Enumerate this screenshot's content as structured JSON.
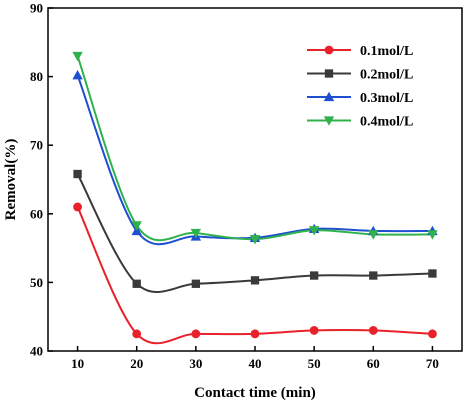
{
  "chart_data": {
    "type": "line",
    "title": "",
    "xlabel": "Contact time (min)",
    "ylabel": "Removal(%)",
    "xlim": [
      5,
      75
    ],
    "ylim": [
      40,
      90
    ],
    "xticks": [
      10,
      20,
      30,
      40,
      50,
      60,
      70
    ],
    "yticks": [
      40,
      50,
      60,
      70,
      80,
      90
    ],
    "grid": false,
    "legend_position": "top-right",
    "x": [
      10,
      20,
      30,
      40,
      50,
      60,
      70
    ],
    "series": [
      {
        "name": "0.1mol/L",
        "color": "#e8212a",
        "marker": "circle",
        "values": [
          61.0,
          42.5,
          42.5,
          42.5,
          43.0,
          43.0,
          42.5
        ]
      },
      {
        "name": "0.2mol/L",
        "color": "#3a3a3a",
        "marker": "square",
        "values": [
          65.8,
          49.8,
          49.8,
          50.3,
          51.0,
          51.0,
          51.3
        ]
      },
      {
        "name": "0.3mol/L",
        "color": "#1f4fd1",
        "marker": "triangle-up",
        "values": [
          80.2,
          57.5,
          56.7,
          56.5,
          57.8,
          57.5,
          57.5
        ]
      },
      {
        "name": "0.4mol/L",
        "color": "#2fb24c",
        "marker": "triangle-down",
        "values": [
          83.0,
          58.3,
          57.2,
          56.3,
          57.6,
          57.0,
          57.0
        ]
      }
    ]
  }
}
